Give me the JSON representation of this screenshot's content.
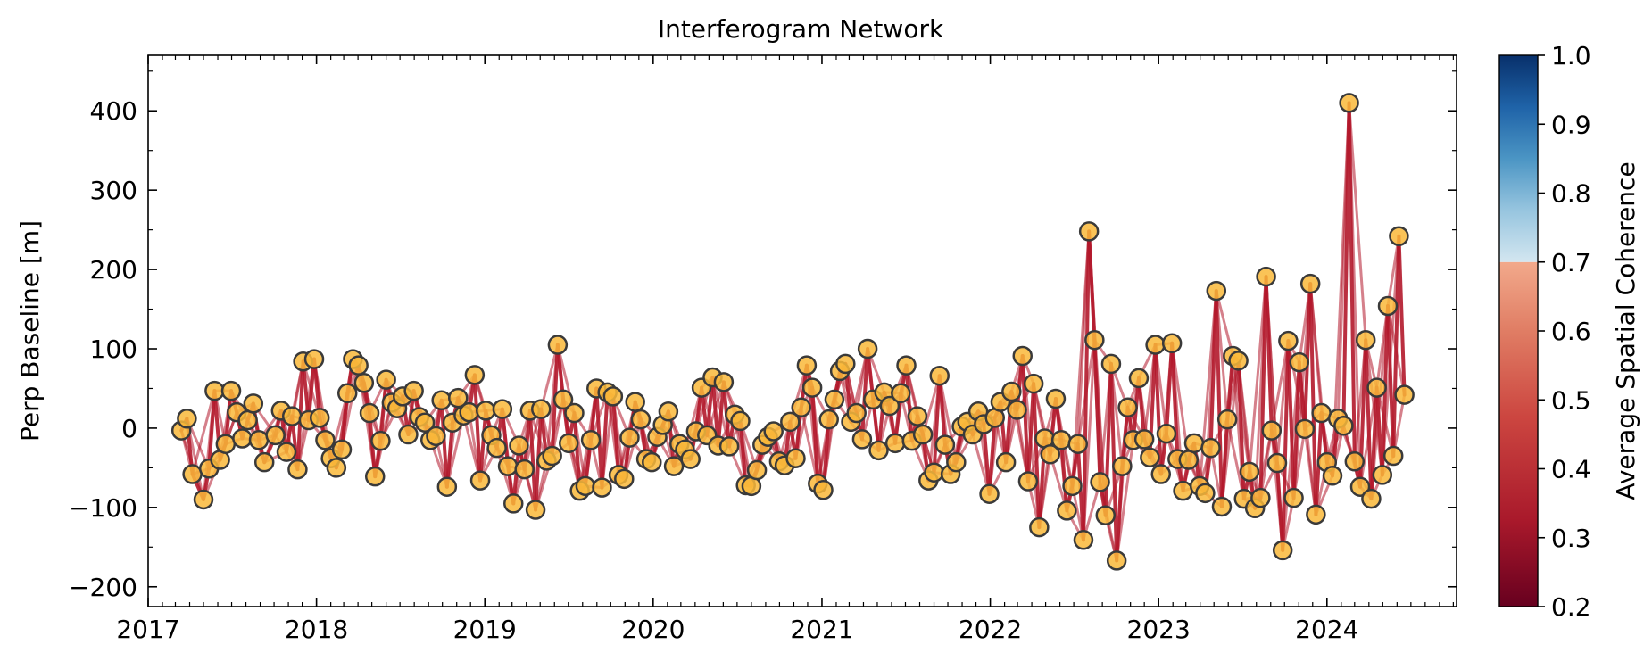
{
  "chart_data": {
    "type": "scatter",
    "title": "Interferogram Network",
    "xlabel": "",
    "ylabel": "Perp Baseline [m]",
    "xlim": [
      "2017-01-01",
      "2024-10-08"
    ],
    "ylim": [
      -225,
      470
    ],
    "x_ticks": [
      "2017",
      "2018",
      "2019",
      "2020",
      "2021",
      "2022",
      "2023",
      "2024"
    ],
    "y_ticks": [
      -200,
      -100,
      0,
      100,
      200,
      300,
      400
    ],
    "y_tick_labels": [
      "−200",
      "−100",
      "0",
      "100",
      "200",
      "300",
      "400"
    ],
    "grid": false,
    "colorbar": {
      "label": "Average Spatial Coherence",
      "range": [
        0.2,
        1.0
      ],
      "ticks": [
        0.2,
        0.3,
        0.4,
        0.5,
        0.6,
        0.7,
        0.8,
        0.9,
        1.0
      ],
      "tick_labels": [
        "0.2",
        "0.3",
        "0.4",
        "0.5",
        "0.6",
        "0.7",
        "0.8",
        "0.9",
        "1.0"
      ],
      "colormap": "RdBu"
    },
    "edge_color": "#b2182b",
    "marker_fill": "#f9b83a",
    "marker_edge": "#3a3a3a",
    "edge_coherence": 0.4,
    "acquisitions": [
      {
        "date": "2017-03-14",
        "bperp": -3
      },
      {
        "date": "2017-03-26",
        "bperp": 12
      },
      {
        "date": "2017-04-07",
        "bperp": -58
      },
      {
        "date": "2017-05-01",
        "bperp": -90
      },
      {
        "date": "2017-05-13",
        "bperp": -51
      },
      {
        "date": "2017-05-25",
        "bperp": 47
      },
      {
        "date": "2017-06-06",
        "bperp": -40
      },
      {
        "date": "2017-06-18",
        "bperp": -20
      },
      {
        "date": "2017-06-30",
        "bperp": 47
      },
      {
        "date": "2017-07-12",
        "bperp": 20
      },
      {
        "date": "2017-07-24",
        "bperp": -13
      },
      {
        "date": "2017-08-05",
        "bperp": 10
      },
      {
        "date": "2017-08-17",
        "bperp": 31
      },
      {
        "date": "2017-08-29",
        "bperp": -15
      },
      {
        "date": "2017-09-10",
        "bperp": -43
      },
      {
        "date": "2017-10-04",
        "bperp": -9
      },
      {
        "date": "2017-10-16",
        "bperp": 22
      },
      {
        "date": "2017-10-28",
        "bperp": -30
      },
      {
        "date": "2017-11-09",
        "bperp": 15
      },
      {
        "date": "2017-11-21",
        "bperp": -52
      },
      {
        "date": "2017-12-03",
        "bperp": 84
      },
      {
        "date": "2017-12-15",
        "bperp": 10
      },
      {
        "date": "2017-12-27",
        "bperp": 87
      },
      {
        "date": "2018-01-08",
        "bperp": 13
      },
      {
        "date": "2018-01-20",
        "bperp": -15
      },
      {
        "date": "2018-02-01",
        "bperp": -38
      },
      {
        "date": "2018-02-13",
        "bperp": -50
      },
      {
        "date": "2018-02-25",
        "bperp": -27
      },
      {
        "date": "2018-03-09",
        "bperp": 44
      },
      {
        "date": "2018-03-21",
        "bperp": 87
      },
      {
        "date": "2018-04-02",
        "bperp": 79
      },
      {
        "date": "2018-04-14",
        "bperp": 57
      },
      {
        "date": "2018-04-26",
        "bperp": 19
      },
      {
        "date": "2018-05-08",
        "bperp": -61
      },
      {
        "date": "2018-05-20",
        "bperp": -16
      },
      {
        "date": "2018-06-01",
        "bperp": 61
      },
      {
        "date": "2018-06-13",
        "bperp": 32
      },
      {
        "date": "2018-06-25",
        "bperp": 25
      },
      {
        "date": "2018-07-07",
        "bperp": 40
      },
      {
        "date": "2018-07-19",
        "bperp": -8
      },
      {
        "date": "2018-07-31",
        "bperp": 47
      },
      {
        "date": "2018-08-12",
        "bperp": 14
      },
      {
        "date": "2018-08-24",
        "bperp": 7
      },
      {
        "date": "2018-09-05",
        "bperp": -15
      },
      {
        "date": "2018-09-17",
        "bperp": -10
      },
      {
        "date": "2018-09-29",
        "bperp": 35
      },
      {
        "date": "2018-10-11",
        "bperp": -74
      },
      {
        "date": "2018-10-23",
        "bperp": 7
      },
      {
        "date": "2018-11-04",
        "bperp": 38
      },
      {
        "date": "2018-11-16",
        "bperp": 16
      },
      {
        "date": "2018-11-28",
        "bperp": 20
      },
      {
        "date": "2018-12-10",
        "bperp": 67
      },
      {
        "date": "2018-12-22",
        "bperp": -66
      },
      {
        "date": "2019-01-03",
        "bperp": 22
      },
      {
        "date": "2019-01-15",
        "bperp": -9
      },
      {
        "date": "2019-01-27",
        "bperp": -25
      },
      {
        "date": "2019-02-08",
        "bperp": 24
      },
      {
        "date": "2019-02-20",
        "bperp": -48
      },
      {
        "date": "2019-03-04",
        "bperp": -95
      },
      {
        "date": "2019-03-16",
        "bperp": -22
      },
      {
        "date": "2019-03-28",
        "bperp": -52
      },
      {
        "date": "2019-04-09",
        "bperp": 22
      },
      {
        "date": "2019-04-21",
        "bperp": -103
      },
      {
        "date": "2019-05-03",
        "bperp": 24
      },
      {
        "date": "2019-05-15",
        "bperp": -41
      },
      {
        "date": "2019-05-27",
        "bperp": -35
      },
      {
        "date": "2019-06-08",
        "bperp": 105
      },
      {
        "date": "2019-06-20",
        "bperp": 36
      },
      {
        "date": "2019-07-02",
        "bperp": -19
      },
      {
        "date": "2019-07-14",
        "bperp": 19
      },
      {
        "date": "2019-07-26",
        "bperp": -79
      },
      {
        "date": "2019-08-07",
        "bperp": -73
      },
      {
        "date": "2019-08-19",
        "bperp": -15
      },
      {
        "date": "2019-08-31",
        "bperp": 50
      },
      {
        "date": "2019-09-12",
        "bperp": -75
      },
      {
        "date": "2019-09-24",
        "bperp": 45
      },
      {
        "date": "2019-10-06",
        "bperp": 40
      },
      {
        "date": "2019-10-18",
        "bperp": -59
      },
      {
        "date": "2019-10-30",
        "bperp": -64
      },
      {
        "date": "2019-11-11",
        "bperp": -12
      },
      {
        "date": "2019-11-23",
        "bperp": 33
      },
      {
        "date": "2019-12-05",
        "bperp": 11
      },
      {
        "date": "2019-12-17",
        "bperp": -39
      },
      {
        "date": "2019-12-29",
        "bperp": -43
      },
      {
        "date": "2020-01-10",
        "bperp": -11
      },
      {
        "date": "2020-01-22",
        "bperp": 4
      },
      {
        "date": "2020-02-03",
        "bperp": 21
      },
      {
        "date": "2020-02-15",
        "bperp": -48
      },
      {
        "date": "2020-02-27",
        "bperp": -20
      },
      {
        "date": "2020-03-10",
        "bperp": -27
      },
      {
        "date": "2020-03-22",
        "bperp": -39
      },
      {
        "date": "2020-04-03",
        "bperp": -4
      },
      {
        "date": "2020-04-15",
        "bperp": 51
      },
      {
        "date": "2020-04-27",
        "bperp": -9
      },
      {
        "date": "2020-05-09",
        "bperp": 64
      },
      {
        "date": "2020-05-21",
        "bperp": -22
      },
      {
        "date": "2020-06-02",
        "bperp": 58
      },
      {
        "date": "2020-06-14",
        "bperp": -23
      },
      {
        "date": "2020-06-26",
        "bperp": 17
      },
      {
        "date": "2020-07-08",
        "bperp": 9
      },
      {
        "date": "2020-07-20",
        "bperp": -72
      },
      {
        "date": "2020-08-01",
        "bperp": -73
      },
      {
        "date": "2020-08-13",
        "bperp": -53
      },
      {
        "date": "2020-08-25",
        "bperp": -21
      },
      {
        "date": "2020-09-06",
        "bperp": -11
      },
      {
        "date": "2020-09-18",
        "bperp": -4
      },
      {
        "date": "2020-09-30",
        "bperp": -42
      },
      {
        "date": "2020-10-12",
        "bperp": -47
      },
      {
        "date": "2020-10-24",
        "bperp": 8
      },
      {
        "date": "2020-11-05",
        "bperp": -38
      },
      {
        "date": "2020-11-17",
        "bperp": 26
      },
      {
        "date": "2020-11-29",
        "bperp": 79
      },
      {
        "date": "2020-12-11",
        "bperp": 51
      },
      {
        "date": "2020-12-23",
        "bperp": -70
      },
      {
        "date": "2021-01-04",
        "bperp": -78
      },
      {
        "date": "2021-01-16",
        "bperp": 11
      },
      {
        "date": "2021-01-28",
        "bperp": 36
      },
      {
        "date": "2021-02-09",
        "bperp": 72
      },
      {
        "date": "2021-02-21",
        "bperp": 81
      },
      {
        "date": "2021-03-05",
        "bperp": 8
      },
      {
        "date": "2021-03-17",
        "bperp": 19
      },
      {
        "date": "2021-03-29",
        "bperp": -14
      },
      {
        "date": "2021-04-10",
        "bperp": 100
      },
      {
        "date": "2021-04-22",
        "bperp": 36
      },
      {
        "date": "2021-05-04",
        "bperp": -28
      },
      {
        "date": "2021-05-16",
        "bperp": 45
      },
      {
        "date": "2021-05-28",
        "bperp": 28
      },
      {
        "date": "2021-06-09",
        "bperp": -19
      },
      {
        "date": "2021-06-21",
        "bperp": 44
      },
      {
        "date": "2021-07-03",
        "bperp": 79
      },
      {
        "date": "2021-07-15",
        "bperp": -16
      },
      {
        "date": "2021-07-27",
        "bperp": 15
      },
      {
        "date": "2021-08-08",
        "bperp": -8
      },
      {
        "date": "2021-08-20",
        "bperp": -66
      },
      {
        "date": "2021-09-01",
        "bperp": -56
      },
      {
        "date": "2021-09-13",
        "bperp": 66
      },
      {
        "date": "2021-09-25",
        "bperp": -21
      },
      {
        "date": "2021-10-07",
        "bperp": -58
      },
      {
        "date": "2021-10-19",
        "bperp": -43
      },
      {
        "date": "2021-10-31",
        "bperp": 2
      },
      {
        "date": "2021-11-12",
        "bperp": 8
      },
      {
        "date": "2021-11-24",
        "bperp": -8
      },
      {
        "date": "2021-12-06",
        "bperp": 21
      },
      {
        "date": "2021-12-18",
        "bperp": 5
      },
      {
        "date": "2021-12-30",
        "bperp": -83
      },
      {
        "date": "2022-01-11",
        "bperp": 13
      },
      {
        "date": "2022-01-23",
        "bperp": 33
      },
      {
        "date": "2022-02-04",
        "bperp": -43
      },
      {
        "date": "2022-02-16",
        "bperp": 46
      },
      {
        "date": "2022-02-28",
        "bperp": 23
      },
      {
        "date": "2022-03-12",
        "bperp": 91
      },
      {
        "date": "2022-03-24",
        "bperp": -67
      },
      {
        "date": "2022-04-05",
        "bperp": 56
      },
      {
        "date": "2022-04-17",
        "bperp": -125
      },
      {
        "date": "2022-04-29",
        "bperp": -13
      },
      {
        "date": "2022-05-11",
        "bperp": -33
      },
      {
        "date": "2022-05-23",
        "bperp": 37
      },
      {
        "date": "2022-06-04",
        "bperp": -15
      },
      {
        "date": "2022-06-16",
        "bperp": -104
      },
      {
        "date": "2022-06-28",
        "bperp": -73
      },
      {
        "date": "2022-07-10",
        "bperp": -20
      },
      {
        "date": "2022-07-22",
        "bperp": -141
      },
      {
        "date": "2022-08-03",
        "bperp": 248
      },
      {
        "date": "2022-08-15",
        "bperp": 111
      },
      {
        "date": "2022-08-27",
        "bperp": -68
      },
      {
        "date": "2022-09-08",
        "bperp": -110
      },
      {
        "date": "2022-09-20",
        "bperp": 81
      },
      {
        "date": "2022-10-02",
        "bperp": -167
      },
      {
        "date": "2022-10-14",
        "bperp": -48
      },
      {
        "date": "2022-10-26",
        "bperp": 26
      },
      {
        "date": "2022-11-07",
        "bperp": -15
      },
      {
        "date": "2022-11-19",
        "bperp": 63
      },
      {
        "date": "2022-12-01",
        "bperp": -14
      },
      {
        "date": "2022-12-13",
        "bperp": -37
      },
      {
        "date": "2022-12-25",
        "bperp": 105
      },
      {
        "date": "2023-01-06",
        "bperp": -58
      },
      {
        "date": "2023-01-18",
        "bperp": -7
      },
      {
        "date": "2023-01-30",
        "bperp": 107
      },
      {
        "date": "2023-02-11",
        "bperp": -39
      },
      {
        "date": "2023-02-23",
        "bperp": -79
      },
      {
        "date": "2023-03-07",
        "bperp": -40
      },
      {
        "date": "2023-03-19",
        "bperp": -19
      },
      {
        "date": "2023-03-31",
        "bperp": -73
      },
      {
        "date": "2023-04-12",
        "bperp": -82
      },
      {
        "date": "2023-04-24",
        "bperp": -25
      },
      {
        "date": "2023-05-06",
        "bperp": 173
      },
      {
        "date": "2023-05-18",
        "bperp": -99
      },
      {
        "date": "2023-05-30",
        "bperp": 11
      },
      {
        "date": "2023-06-11",
        "bperp": 91
      },
      {
        "date": "2023-06-23",
        "bperp": 85
      },
      {
        "date": "2023-07-05",
        "bperp": -89
      },
      {
        "date": "2023-07-17",
        "bperp": -55
      },
      {
        "date": "2023-07-29",
        "bperp": -101
      },
      {
        "date": "2023-08-10",
        "bperp": -88
      },
      {
        "date": "2023-08-22",
        "bperp": 191
      },
      {
        "date": "2023-09-03",
        "bperp": -3
      },
      {
        "date": "2023-09-15",
        "bperp": -44
      },
      {
        "date": "2023-09-27",
        "bperp": -154
      },
      {
        "date": "2023-10-09",
        "bperp": 110
      },
      {
        "date": "2023-10-21",
        "bperp": -88
      },
      {
        "date": "2023-11-02",
        "bperp": 83
      },
      {
        "date": "2023-11-14",
        "bperp": -1
      },
      {
        "date": "2023-11-26",
        "bperp": 182
      },
      {
        "date": "2023-12-08",
        "bperp": -109
      },
      {
        "date": "2023-12-20",
        "bperp": 19
      },
      {
        "date": "2024-01-01",
        "bperp": -43
      },
      {
        "date": "2024-01-13",
        "bperp": -60
      },
      {
        "date": "2024-01-25",
        "bperp": 12
      },
      {
        "date": "2024-02-06",
        "bperp": 3
      },
      {
        "date": "2024-02-18",
        "bperp": 410
      },
      {
        "date": "2024-03-01",
        "bperp": -42
      },
      {
        "date": "2024-03-13",
        "bperp": -74
      },
      {
        "date": "2024-03-25",
        "bperp": 111
      },
      {
        "date": "2024-04-06",
        "bperp": -89
      },
      {
        "date": "2024-04-18",
        "bperp": 51
      },
      {
        "date": "2024-04-30",
        "bperp": -59
      },
      {
        "date": "2024-05-12",
        "bperp": 154
      },
      {
        "date": "2024-05-24",
        "bperp": -35
      },
      {
        "date": "2024-06-05",
        "bperp": 242
      },
      {
        "date": "2024-06-17",
        "bperp": 42
      }
    ]
  }
}
